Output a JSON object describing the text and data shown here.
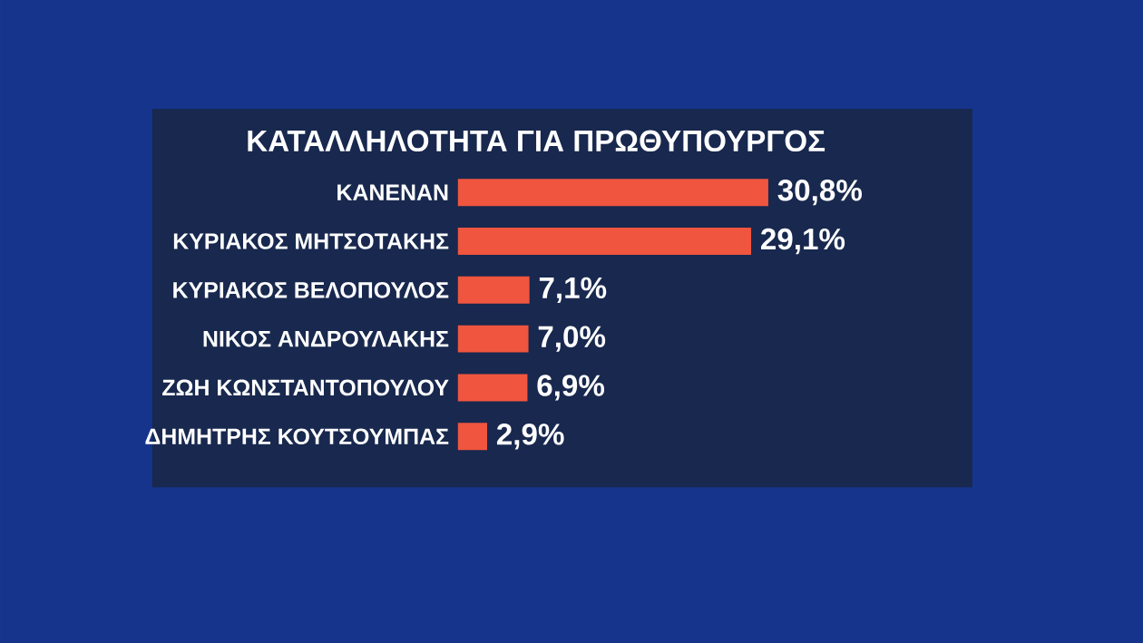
{
  "chart_data": {
    "type": "bar",
    "orientation": "horizontal",
    "title": "ΚΑΤΑΛΛΗΛΟΤΗΤΑ ΓΙΑ ΠΡΩΘΥΠΟΥΡΓΟΣ",
    "categories": [
      "ΚΑΝΕΝΑΝ",
      "ΚΥΡΙΑΚΟΣ ΜΗΤΣΟΤΑΚΗΣ",
      "ΚΥΡΙΑΚΟΣ ΒΕΛΟΠΟΥΛΟΣ",
      "ΝΙΚΟΣ ΑΝΔΡΟΥΛΑΚΗΣ",
      "ΖΩΗ ΚΩΝΣΤΑΝΤΟΠΟΥΛΟΥ",
      "ΔΗΜΗΤΡΗΣ ΚΟΥΤΣΟΥΜΠΑΣ"
    ],
    "values": [
      30.8,
      29.1,
      7.1,
      7.0,
      6.9,
      2.9
    ],
    "value_labels": [
      "30,8%",
      "29,1%",
      "7,1%",
      "7,0%",
      "6,9%",
      "2,9%"
    ],
    "color": "#f0553f"
  }
}
